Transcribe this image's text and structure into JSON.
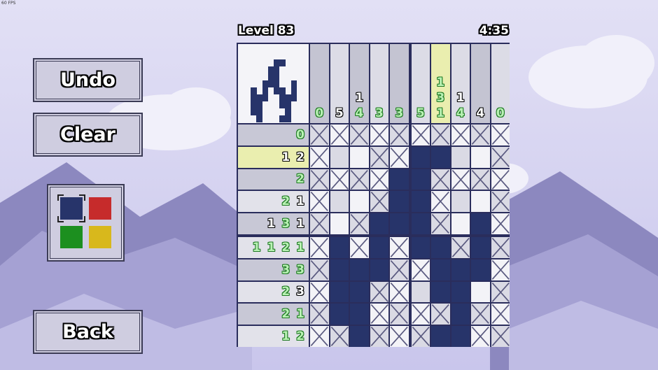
{
  "fps": "60 FPS",
  "level": "Level 83",
  "timer": "4:35",
  "buttons": {
    "undo": "Undo",
    "clear": "Clear",
    "back": "Back"
  },
  "palette": {
    "colors": [
      "#27346a",
      "#c62b2b",
      "#1c8f1f",
      "#d8b81c"
    ],
    "selected": 0
  },
  "colors": {
    "filled": "#27346a",
    "highlight": "#eaeeaf",
    "clue_done": "#1f7a23"
  },
  "highlight": {
    "row": 1,
    "col": 6
  },
  "column_clues": [
    [
      {
        "v": "0",
        "done": true
      }
    ],
    [
      {
        "v": "5",
        "done": false
      }
    ],
    [
      {
        "v": "1",
        "done": false
      },
      {
        "v": "4",
        "done": true
      }
    ],
    [
      {
        "v": "3",
        "done": true
      }
    ],
    [
      {
        "v": "3",
        "done": true
      }
    ],
    [
      {
        "v": "5",
        "done": true
      }
    ],
    [
      {
        "v": "1",
        "done": true
      },
      {
        "v": "3",
        "done": true
      },
      {
        "v": "1",
        "done": true
      }
    ],
    [
      {
        "v": "1",
        "done": false
      },
      {
        "v": "4",
        "done": true
      }
    ],
    [
      {
        "v": "4",
        "done": false
      }
    ],
    [
      {
        "v": "0",
        "done": true
      }
    ]
  ],
  "row_clues": [
    [
      {
        "v": "0",
        "done": true
      }
    ],
    [
      {
        "v": "1",
        "done": false
      },
      {
        "v": "2",
        "done": false
      }
    ],
    [
      {
        "v": "2",
        "done": true
      }
    ],
    [
      {
        "v": "2",
        "done": true
      },
      {
        "v": "1",
        "done": false
      }
    ],
    [
      {
        "v": "1",
        "done": false
      },
      {
        "v": "3",
        "done": true
      },
      {
        "v": "1",
        "done": false
      }
    ],
    [
      {
        "v": "1",
        "done": true
      },
      {
        "v": "1",
        "done": true
      },
      {
        "v": "2",
        "done": true
      },
      {
        "v": "1",
        "done": true
      }
    ],
    [
      {
        "v": "3",
        "done": true
      },
      {
        "v": "3",
        "done": true
      }
    ],
    [
      {
        "v": "2",
        "done": true
      },
      {
        "v": "3",
        "done": false
      }
    ],
    [
      {
        "v": "2",
        "done": true
      },
      {
        "v": "1",
        "done": true
      }
    ],
    [
      {
        "v": "1",
        "done": true
      },
      {
        "v": "2",
        "done": true
      }
    ]
  ],
  "grid": [
    "xxxxxxxxxx",
    "xeexxffeex",
    "xxxxffxxxx",
    "xeexffxeex",
    "xexfffxefx",
    "xfxfxffxfx",
    "xfffxxfffx",
    "xffxxeffex",
    "xffxxxxfxx",
    "xxfxxxffxx"
  ]
}
